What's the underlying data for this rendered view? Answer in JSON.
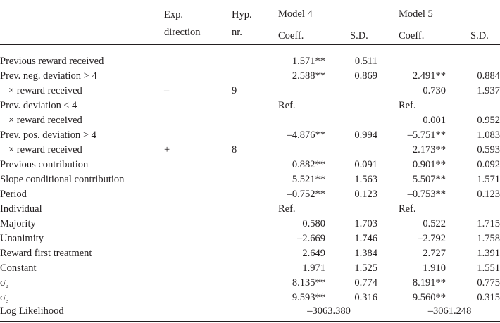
{
  "header": {
    "exp_direction": [
      "Exp.",
      "direction"
    ],
    "hyp_nr": [
      "Hyp.",
      "nr."
    ],
    "model4": "Model 4",
    "model5": "Model 5",
    "coeff": "Coeff.",
    "sd": "S.D."
  },
  "rows": [
    {
      "label": "Previous reward received",
      "exp": "",
      "hyp": "",
      "m4c": "1.571**",
      "m4s": "0.511",
      "m5c": "",
      "m5s": ""
    },
    {
      "label": "Prev. neg. deviation > 4",
      "exp": "",
      "hyp": "",
      "m4c": "2.588**",
      "m4s": "0.869",
      "m5c": "2.491**",
      "m5s": "0.884"
    },
    {
      "label": "× reward received",
      "exp": "–",
      "hyp": "9",
      "m4c": "",
      "m4s": "",
      "m5c": "0.730",
      "m5s": "1.937"
    },
    {
      "label": "Prev. deviation ≤ 4",
      "exp": "",
      "hyp": "",
      "m4c": "Ref.",
      "m4s": "",
      "m5c": "Ref.",
      "m5s": ""
    },
    {
      "label": "× reward received",
      "exp": "",
      "hyp": "",
      "m4c": "",
      "m4s": "",
      "m5c": "0.001",
      "m5s": "0.952"
    },
    {
      "label": "Prev. pos. deviation > 4",
      "exp": "",
      "hyp": "",
      "m4c": "–4.876**",
      "m4s": "0.994",
      "m5c": "–5.751**",
      "m5s": "1.083"
    },
    {
      "label": "× reward received",
      "exp": "+",
      "hyp": "8",
      "m4c": "",
      "m4s": "",
      "m5c": "2.173**",
      "m5s": "0.593"
    },
    {
      "label": "Previous contribution",
      "exp": "",
      "hyp": "",
      "m4c": "0.882**",
      "m4s": "0.091",
      "m5c": "0.901**",
      "m5s": "0.092"
    },
    {
      "label": "Slope conditional contribution",
      "exp": "",
      "hyp": "",
      "m4c": "5.521**",
      "m4s": "1.563",
      "m5c": "5.507**",
      "m5s": "1.571"
    },
    {
      "label": "Period",
      "exp": "",
      "hyp": "",
      "m4c": "–0.752**",
      "m4s": "0.123",
      "m5c": "–0.753**",
      "m5s": "0.123"
    },
    {
      "label": "Individual",
      "exp": "",
      "hyp": "",
      "m4c": "Ref.",
      "m4s": "",
      "m5c": "Ref.",
      "m5s": ""
    },
    {
      "label": "Majority",
      "exp": "",
      "hyp": "",
      "m4c": "0.580",
      "m4s": "1.703",
      "m5c": "0.522",
      "m5s": "1.715"
    },
    {
      "label": "Unanimity",
      "exp": "",
      "hyp": "",
      "m4c": "–2.669",
      "m4s": "1.746",
      "m5c": "–2.792",
      "m5s": "1.758"
    },
    {
      "label": "Reward first treatment",
      "exp": "",
      "hyp": "",
      "m4c": "2.649",
      "m4s": "1.384",
      "m5c": "2.727",
      "m5s": "1.391"
    },
    {
      "label": "Constant",
      "exp": "",
      "hyp": "",
      "m4c": "1.971",
      "m4s": "1.525",
      "m5c": "1.910",
      "m5s": "1.551"
    },
    {
      "label": "σ",
      "label_sub": "u",
      "exp": "",
      "hyp": "",
      "m4c": "8.135**",
      "m4s": "0.774",
      "m5c": "8.191**",
      "m5s": "0.775"
    },
    {
      "label": "σ",
      "label_sub": "e",
      "exp": "",
      "hyp": "",
      "m4c": "9.593**",
      "m4s": "0.316",
      "m5c": "9.560**",
      "m5s": "0.315"
    }
  ],
  "loglik": {
    "label": "Log Likelihood",
    "m4": "–3063.380",
    "m5": "–3061.248"
  }
}
